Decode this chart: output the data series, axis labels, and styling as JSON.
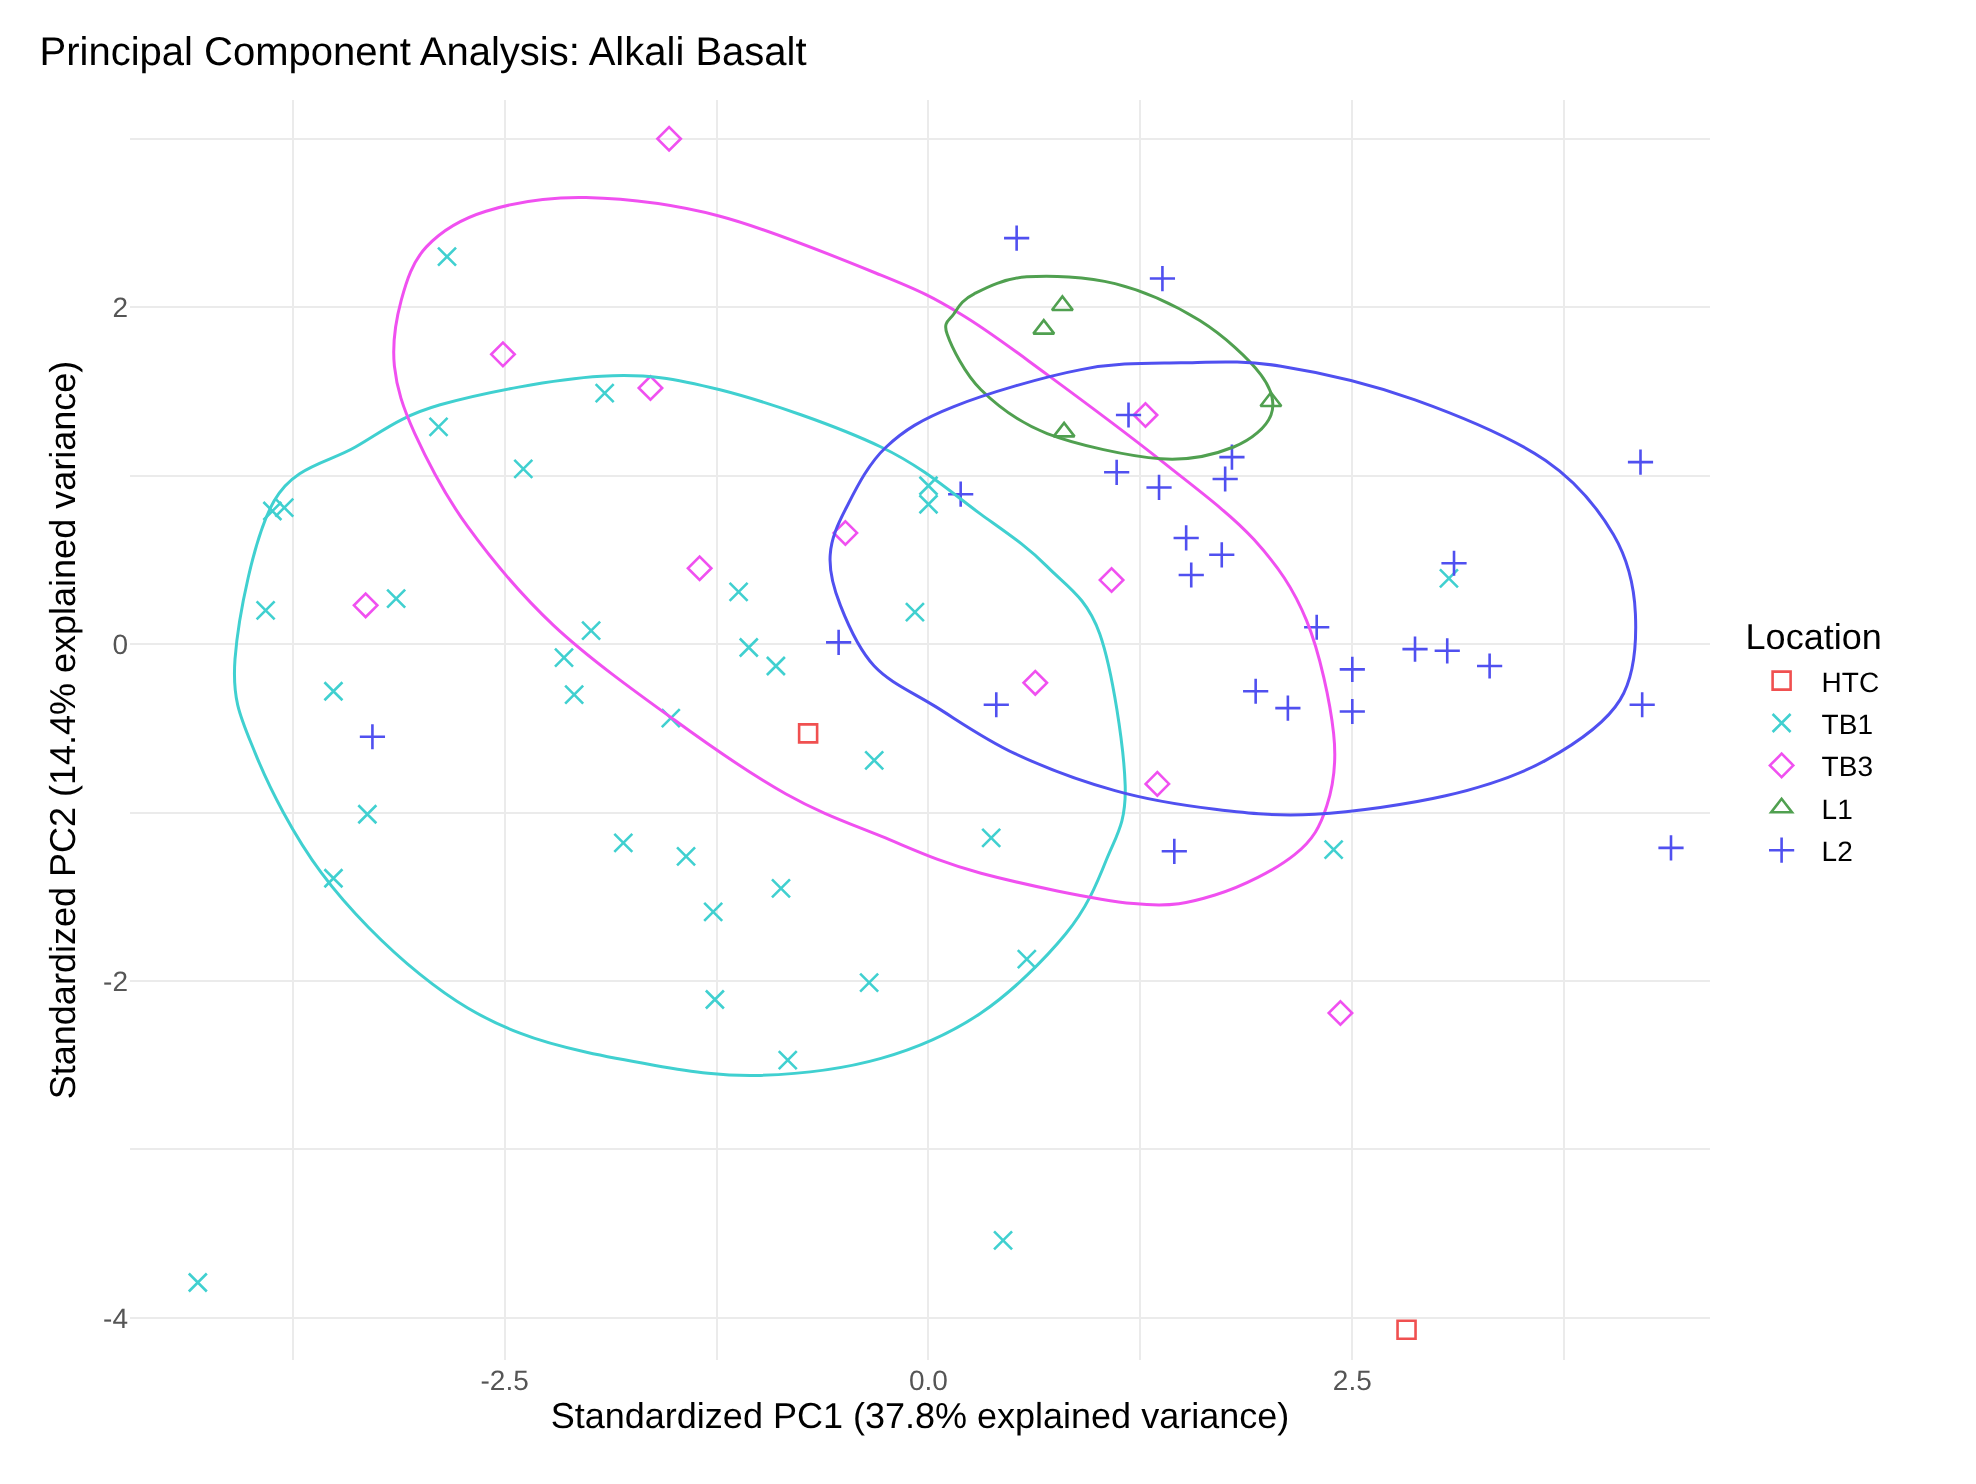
{
  "chart_data": {
    "type": "scatter",
    "title": "Principal Component Analysis: Alkali Basalt",
    "xlabel": "Standardized PC1 (37.8% explained variance)",
    "ylabel": "Standardized PC2 (14.4% explained variance)",
    "legend_title": "Location",
    "legend": "right",
    "grid": true,
    "xlim": [
      -4.71,
      4.61
    ],
    "ylim": [
      -4.25,
      3.23
    ],
    "xticks": [
      {
        "value": -3.75,
        "label": null
      },
      -2.5,
      {
        "value": -1.25,
        "label": null
      },
      {
        "value": 0,
        "label": "0.0"
      },
      {
        "value": 1.25,
        "label": null
      },
      2.5,
      {
        "value": 3.75,
        "label": null
      }
    ],
    "yticks": [
      -4,
      {
        "value": -3,
        "label": null
      },
      -2,
      {
        "value": -1,
        "label": null
      },
      0,
      {
        "value": 1,
        "label": null
      },
      2,
      {
        "value": 3,
        "label": null
      }
    ],
    "series": [
      {
        "name": "HTC",
        "color": "#f05050",
        "marker": "square",
        "x": [
          -0.71,
          2.82
        ],
        "values": [
          -0.53,
          -4.07
        ]
      },
      {
        "name": "TB1",
        "color": "#40d0d0",
        "marker": "x",
        "x": [
          -2.84,
          -1.91,
          -2.89,
          -2.39,
          -3.87,
          -3.8,
          -3.91,
          -3.14,
          -1.99,
          -2.15,
          -2.09,
          -1.12,
          -1.06,
          -0.9,
          -1.52,
          -3.51,
          -0.08,
          -3.31,
          -3.51,
          -1.8,
          -1.43,
          -0.87,
          -1.27,
          -1.26,
          -0.83,
          -0.35,
          -0.32,
          -4.31,
          3.07,
          0.37,
          2.39,
          0.58,
          0.44,
          0.0,
          0.0
        ],
        "values": [
          2.3,
          1.49,
          1.29,
          1.04,
          0.79,
          0.81,
          0.2,
          0.27,
          0.08,
          -0.08,
          -0.3,
          0.31,
          -0.02,
          -0.13,
          -0.44,
          -0.28,
          0.19,
          -1.01,
          -1.39,
          -1.18,
          -1.26,
          -1.45,
          -1.59,
          -2.11,
          -2.47,
          -2.01,
          -0.69,
          -3.79,
          0.39,
          -1.15,
          -1.22,
          -1.87,
          -3.54,
          0.94,
          0.83
        ]
      },
      {
        "name": "TB3",
        "color": "#f050f0",
        "marker": "diamond",
        "x": [
          -1.53,
          -2.51,
          -1.64,
          -3.32,
          -1.35,
          -0.49,
          1.28,
          1.08,
          0.63,
          1.35,
          2.43
        ],
        "values": [
          3.0,
          1.72,
          1.52,
          0.23,
          0.45,
          0.66,
          1.36,
          0.38,
          -0.23,
          -0.83,
          -2.19
        ]
      },
      {
        "name": "L1",
        "color": "#50a050",
        "marker": "triangle",
        "x": [
          0.79,
          0.68,
          0.8,
          2.02
        ],
        "values": [
          2.01,
          1.87,
          1.26,
          1.44
        ]
      },
      {
        "name": "L2",
        "color": "#5050f0",
        "marker": "cross",
        "x": [
          -0.53,
          -3.28,
          0.52,
          1.38,
          1.18,
          1.11,
          1.36,
          1.79,
          1.75,
          0.19,
          1.52,
          1.73,
          1.55,
          3.1,
          4.2,
          2.29,
          2.5,
          2.87,
          3.06,
          3.31,
          1.93,
          2.12,
          2.5,
          4.21,
          0.4,
          4.38,
          1.45
        ],
        "values": [
          0.01,
          -0.55,
          2.41,
          2.17,
          1.36,
          1.02,
          0.93,
          1.11,
          0.98,
          0.89,
          0.63,
          0.53,
          0.41,
          0.48,
          1.08,
          0.1,
          -0.15,
          -0.03,
          -0.04,
          -0.13,
          -0.28,
          -0.38,
          -0.4,
          -0.36,
          -0.36,
          -1.21,
          -1.23
        ]
      }
    ]
  }
}
